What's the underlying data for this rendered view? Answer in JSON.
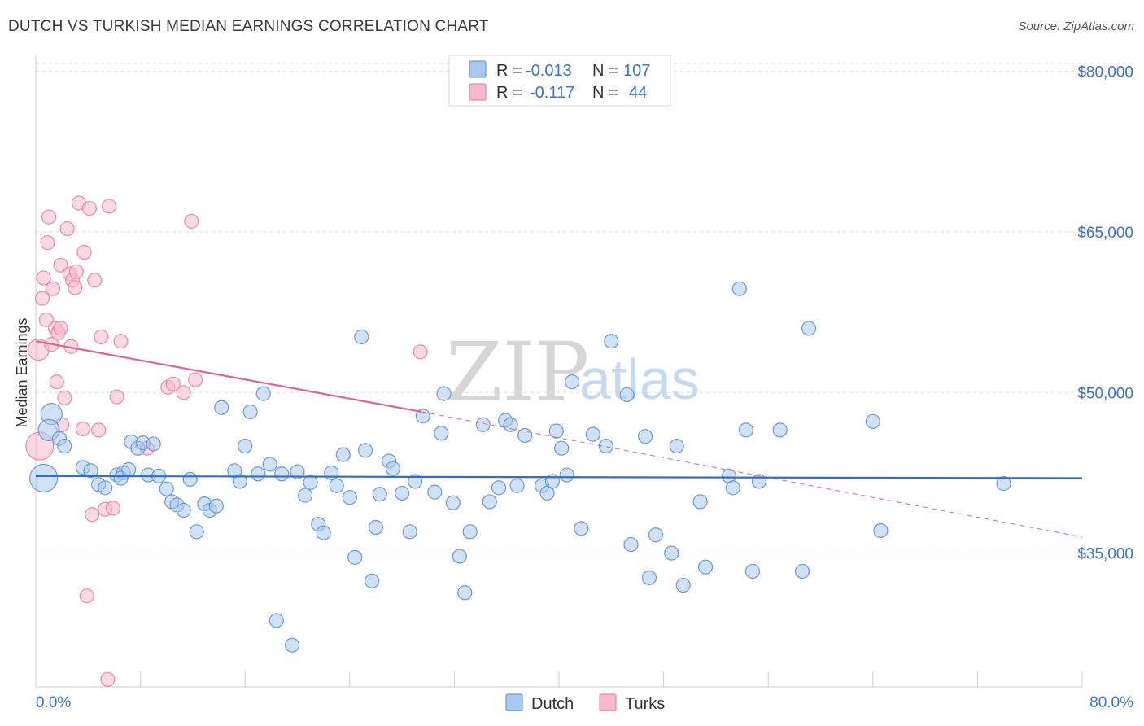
{
  "title": "DUTCH VS TURKISH MEDIAN EARNINGS CORRELATION CHART",
  "source": "Source: ZipAtlas.com",
  "colors": {
    "dutch_fill": "#a9c8ee",
    "dutch_stroke": "#6a9ad8",
    "dutch_line": "#2f6fc9",
    "turks_fill": "#f6b9cb",
    "turks_stroke": "#e98aa6",
    "turks_line": "#e0668f",
    "axis_text": "#3a75c4"
  },
  "legend": {
    "rows": [
      {
        "r_label": "R =",
        "r_value": "-0.013",
        "n_label": "N =",
        "n_value": "107"
      },
      {
        "r_label": "R =",
        "r_value": "-0.117",
        "n_label": "N =",
        "n_value": "44"
      }
    ]
  },
  "bottom_legend": [
    "Dutch",
    "Turks"
  ],
  "chart_data": {
    "type": "scatter",
    "ylabel": "Median Earnings",
    "xlim": [
      0,
      80
    ],
    "ylim": [
      22500,
      81500
    ],
    "x_tick_labels": [
      "0.0%",
      "80.0%"
    ],
    "y_ticks": [
      35000,
      50000,
      65000,
      80000
    ],
    "y_tick_labels": [
      "$35,000",
      "$50,000",
      "$65,000",
      "$80,000"
    ],
    "grid": "horizontal dashed",
    "series": [
      {
        "name": "Dutch",
        "trend": {
          "x0": 0,
          "y0": 42200,
          "x1": 80,
          "y1": 42000
        },
        "points": [
          [
            0.6,
            42000,
            3
          ],
          [
            1.2,
            48000,
            2
          ],
          [
            1.0,
            46500,
            2
          ],
          [
            1.8,
            45700,
            1
          ],
          [
            2.2,
            45000,
            1
          ],
          [
            3.6,
            43000,
            1
          ],
          [
            4.2,
            42700,
            1
          ],
          [
            4.8,
            41400,
            1
          ],
          [
            5.3,
            41100,
            1
          ],
          [
            6.2,
            42300,
            1
          ],
          [
            6.7,
            42500,
            1
          ],
          [
            6.5,
            42000,
            1
          ],
          [
            7.1,
            42800,
            1
          ],
          [
            7.3,
            45400,
            1
          ],
          [
            7.8,
            44800,
            1
          ],
          [
            8.2,
            45300,
            1
          ],
          [
            8.6,
            42300,
            1
          ],
          [
            9.0,
            45200,
            1
          ],
          [
            9.4,
            42200,
            1
          ],
          [
            10.0,
            41000,
            1
          ],
          [
            10.4,
            39800,
            1
          ],
          [
            10.8,
            39500,
            1
          ],
          [
            11.3,
            39000,
            1
          ],
          [
            11.8,
            41900,
            1
          ],
          [
            12.3,
            37000,
            1
          ],
          [
            12.9,
            39600,
            1
          ],
          [
            13.3,
            39000,
            1
          ],
          [
            13.8,
            39400,
            1
          ],
          [
            14.2,
            48600,
            1
          ],
          [
            15.2,
            42700,
            1
          ],
          [
            15.6,
            41700,
            1
          ],
          [
            16.0,
            45000,
            1
          ],
          [
            16.4,
            48200,
            1
          ],
          [
            17.0,
            42400,
            1
          ],
          [
            17.4,
            49900,
            1
          ],
          [
            17.9,
            43300,
            1
          ],
          [
            18.4,
            28700,
            1
          ],
          [
            18.8,
            42400,
            1
          ],
          [
            19.6,
            26400,
            1
          ],
          [
            20.0,
            42600,
            1
          ],
          [
            20.6,
            40400,
            1
          ],
          [
            21.0,
            41600,
            1
          ],
          [
            21.6,
            37700,
            1
          ],
          [
            22.0,
            36900,
            1
          ],
          [
            22.6,
            42500,
            1
          ],
          [
            23.0,
            41300,
            1
          ],
          [
            23.5,
            44200,
            1
          ],
          [
            24.0,
            40200,
            1
          ],
          [
            24.4,
            34600,
            1
          ],
          [
            25.2,
            44600,
            1
          ],
          [
            25.7,
            32400,
            1
          ],
          [
            26.0,
            37400,
            1
          ],
          [
            26.3,
            40500,
            1
          ],
          [
            27.0,
            43600,
            1
          ],
          [
            27.3,
            42900,
            1
          ],
          [
            28.0,
            40600,
            1
          ],
          [
            28.6,
            37000,
            1
          ],
          [
            29.0,
            41700,
            1
          ],
          [
            29.6,
            47800,
            1
          ],
          [
            30.5,
            40700,
            1
          ],
          [
            31.0,
            46200,
            1
          ],
          [
            31.2,
            49900,
            1
          ],
          [
            31.9,
            39700,
            1
          ],
          [
            32.4,
            34700,
            1
          ],
          [
            32.8,
            31300,
            1
          ],
          [
            33.2,
            37000,
            1
          ],
          [
            34.2,
            47000,
            1
          ],
          [
            34.7,
            39800,
            1
          ],
          [
            35.4,
            41100,
            1
          ],
          [
            35.9,
            47400,
            1
          ],
          [
            36.3,
            47000,
            1
          ],
          [
            36.8,
            41300,
            1
          ],
          [
            37.4,
            46000,
            1
          ],
          [
            38.7,
            41300,
            1
          ],
          [
            39.1,
            40600,
            1
          ],
          [
            39.5,
            41700,
            1
          ],
          [
            39.8,
            46400,
            1
          ],
          [
            40.2,
            44800,
            1
          ],
          [
            40.6,
            42300,
            1
          ],
          [
            41.0,
            51000,
            1
          ],
          [
            41.7,
            37300,
            1
          ],
          [
            42.6,
            46100,
            1
          ],
          [
            43.6,
            45000,
            1
          ],
          [
            44.0,
            54800,
            1
          ],
          [
            45.2,
            49800,
            1
          ],
          [
            45.5,
            35800,
            1
          ],
          [
            46.6,
            45900,
            1
          ],
          [
            46.9,
            32700,
            1
          ],
          [
            47.4,
            36700,
            1
          ],
          [
            48.6,
            35000,
            1
          ],
          [
            49.0,
            45000,
            1
          ],
          [
            49.5,
            32000,
            1
          ],
          [
            50.8,
            39800,
            1
          ],
          [
            51.2,
            33700,
            1
          ],
          [
            53.0,
            42200,
            1
          ],
          [
            53.3,
            41100,
            1
          ],
          [
            53.8,
            59700,
            1
          ],
          [
            54.3,
            46500,
            1
          ],
          [
            54.8,
            33300,
            1
          ],
          [
            55.3,
            41700,
            1
          ],
          [
            56.9,
            46500,
            1
          ],
          [
            58.6,
            33300,
            1
          ],
          [
            59.1,
            56000,
            1
          ],
          [
            64.0,
            47300,
            1
          ],
          [
            64.6,
            37100,
            1
          ],
          [
            74.0,
            41500,
            1
          ],
          [
            24.9,
            55200,
            1
          ]
        ]
      },
      {
        "name": "Turks",
        "trend": {
          "x0": 0,
          "y0": 54800,
          "x1": 29.5,
          "y1": 48200
        },
        "trend_dashed": {
          "x0": 29.5,
          "y0": 48200,
          "x1": 80,
          "y1": 36500
        },
        "points": [
          [
            0.2,
            54000,
            2
          ],
          [
            0.3,
            45000,
            3
          ],
          [
            0.5,
            58800,
            1
          ],
          [
            0.6,
            60700,
            1
          ],
          [
            0.8,
            56800,
            1
          ],
          [
            0.9,
            64000,
            1
          ],
          [
            1.0,
            66400,
            1
          ],
          [
            1.2,
            54500,
            1
          ],
          [
            1.3,
            59700,
            1
          ],
          [
            1.5,
            56000,
            1
          ],
          [
            1.6,
            51000,
            1
          ],
          [
            1.7,
            55600,
            1
          ],
          [
            1.9,
            61900,
            1
          ],
          [
            2.0,
            47000,
            1
          ],
          [
            2.2,
            49500,
            1
          ],
          [
            2.4,
            65300,
            1
          ],
          [
            2.6,
            61100,
            1
          ],
          [
            2.7,
            54300,
            1
          ],
          [
            2.8,
            60500,
            1
          ],
          [
            3.0,
            59800,
            1
          ],
          [
            3.3,
            67700,
            1
          ],
          [
            3.6,
            46600,
            1
          ],
          [
            3.7,
            63100,
            1
          ],
          [
            3.9,
            31000,
            1
          ],
          [
            4.1,
            67200,
            1
          ],
          [
            4.3,
            38600,
            1
          ],
          [
            4.5,
            60500,
            1
          ],
          [
            4.8,
            46500,
            1
          ],
          [
            5.0,
            55200,
            1
          ],
          [
            5.3,
            39100,
            1
          ],
          [
            5.5,
            23200,
            1
          ],
          [
            5.6,
            67400,
            1
          ],
          [
            5.9,
            39200,
            1
          ],
          [
            6.2,
            49600,
            1
          ],
          [
            6.5,
            54800,
            1
          ],
          [
            8.5,
            44800,
            1
          ],
          [
            10.1,
            50500,
            1
          ],
          [
            10.5,
            50800,
            1
          ],
          [
            11.3,
            50000,
            1
          ],
          [
            11.9,
            66000,
            1
          ],
          [
            12.2,
            51200,
            1
          ],
          [
            29.4,
            53800,
            1
          ],
          [
            1.9,
            56000,
            1
          ],
          [
            3.1,
            61300,
            1
          ]
        ]
      }
    ]
  }
}
